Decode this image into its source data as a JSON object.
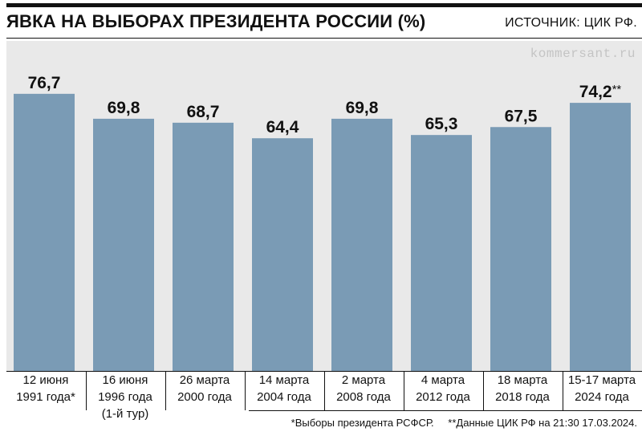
{
  "title": "ЯВКА НА ВЫБОРАХ ПРЕЗИДЕНТА РОССИИ (%)",
  "source": "ИСТОЧНИК: ЦИК РФ.",
  "watermark": "kommersant.ru",
  "colors": {
    "bar": "#7a9bb5",
    "panel": "#e9e9e9",
    "text": "#111111",
    "watermark": "#c4c4c4"
  },
  "chart_data": {
    "type": "bar",
    "title": "ЯВКА НА ВЫБОРАХ ПРЕЗИДЕНТА РОССИИ (%)",
    "categories": [
      "12 июня\n1991 года*",
      "16 июня\n1996 года\n(1-й тур)",
      "26 марта\n2000 года",
      "14 марта\n2004 года",
      "2 марта\n2008 года",
      "4 марта\n2012 года",
      "18 марта\n2018 года",
      "15-17 марта\n2024 года"
    ],
    "values": [
      76.7,
      69.8,
      68.7,
      64.4,
      69.8,
      65.3,
      67.5,
      74.2
    ],
    "value_labels": [
      "76,7",
      "69,8",
      "68,7",
      "64,4",
      "69,8",
      "65,3",
      "67,5",
      "74,2"
    ],
    "value_label_suffixes": [
      "",
      "",
      "",
      "",
      "",
      "",
      "",
      "**"
    ],
    "ylim": [
      0,
      80
    ],
    "grid": false,
    "xlabel": "",
    "ylabel": ""
  },
  "footnotes": [
    "*Выборы президента РСФСР.",
    "**Данные ЦИК РФ на 21:30 17.03.2024."
  ]
}
